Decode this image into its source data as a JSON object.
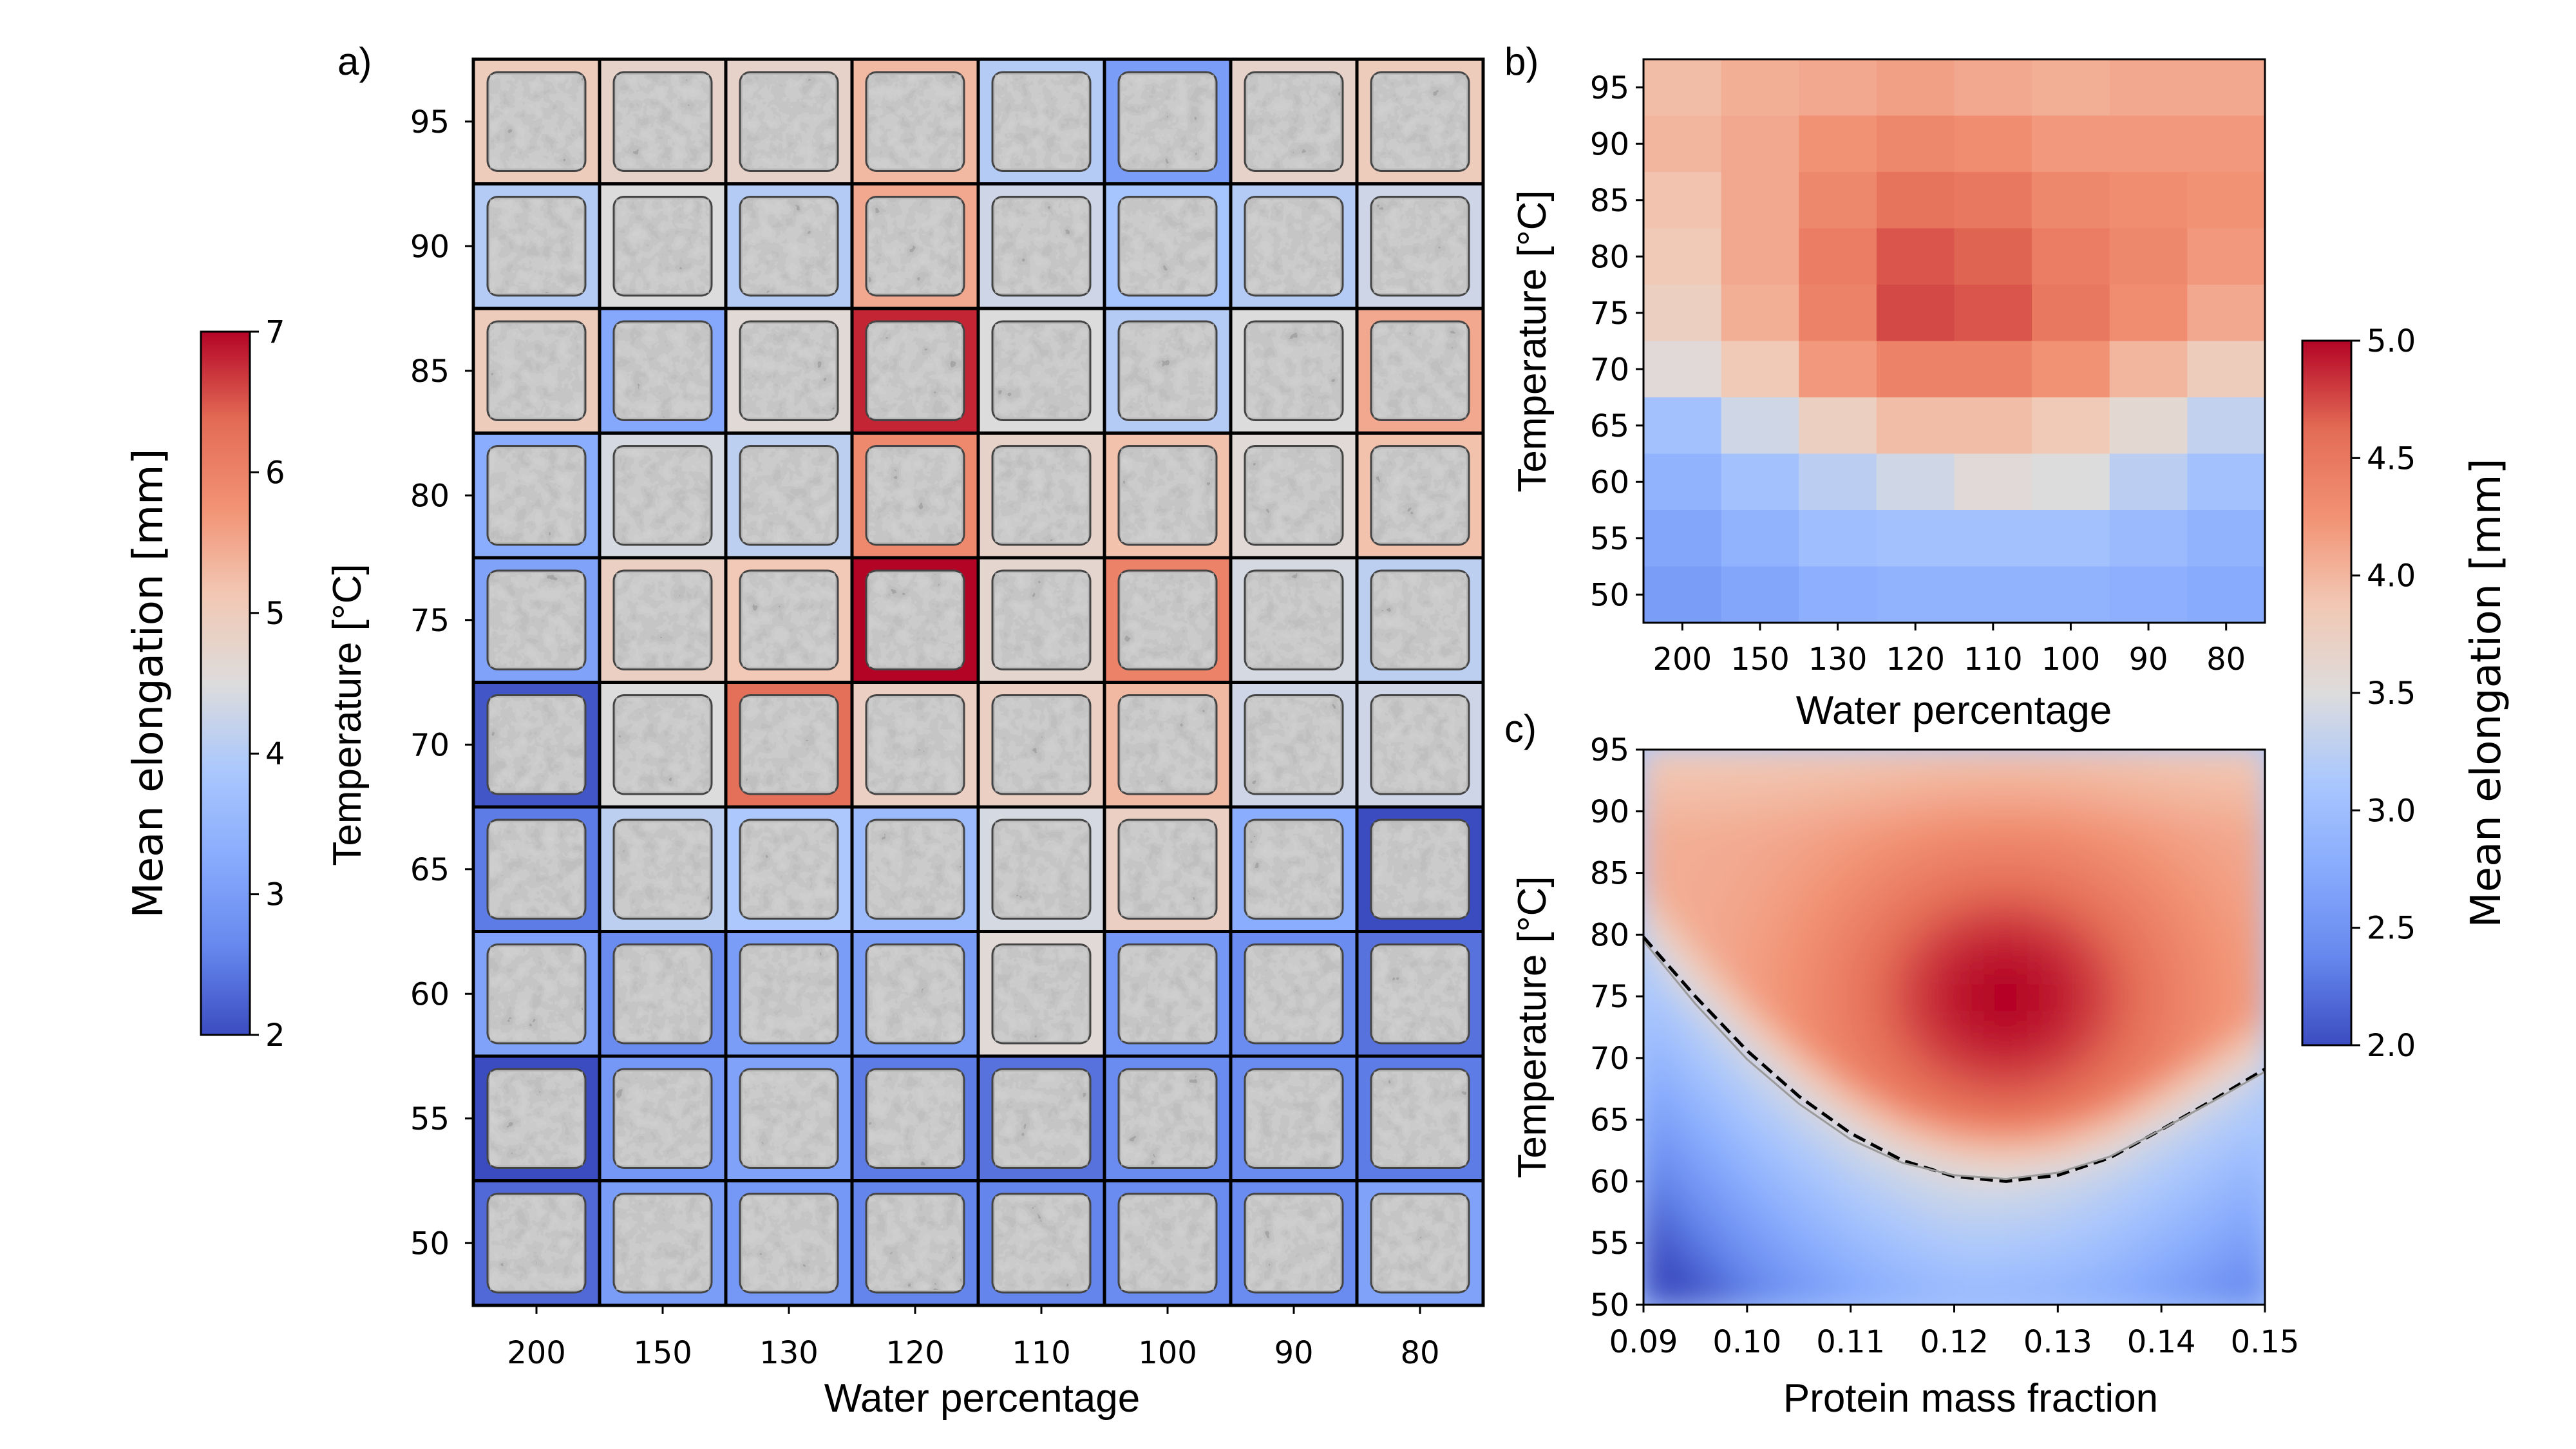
{
  "chart_data": [
    {
      "panel": "a)",
      "type": "heatmap",
      "title": "a)",
      "xlabel": "Water percentage",
      "ylabel": "Temperature [°C]",
      "x_categories": [
        "200",
        "150",
        "130",
        "120",
        "110",
        "100",
        "90",
        "80"
      ],
      "y_categories": [
        "95",
        "90",
        "85",
        "80",
        "75",
        "70",
        "65",
        "60",
        "55",
        "50"
      ],
      "cell_content": "sample photograph bordered by the mean-elongation colour",
      "values": [
        [
          5.0,
          4.8,
          4.8,
          5.3,
          4.0,
          3.0,
          4.8,
          5.0
        ],
        [
          4.0,
          4.5,
          4.0,
          5.5,
          4.3,
          3.8,
          4.0,
          4.3
        ],
        [
          5.0,
          3.2,
          4.6,
          6.8,
          4.5,
          4.0,
          4.5,
          5.5
        ],
        [
          3.3,
          4.4,
          4.1,
          5.9,
          4.8,
          5.2,
          4.6,
          5.2
        ],
        [
          3.1,
          4.9,
          5.1,
          7.0,
          4.7,
          6.0,
          4.4,
          4.1
        ],
        [
          2.1,
          4.5,
          6.3,
          4.9,
          4.9,
          5.3,
          4.3,
          4.3
        ],
        [
          2.5,
          4.1,
          3.9,
          3.6,
          4.4,
          4.9,
          3.3,
          2.0
        ],
        [
          3.1,
          2.7,
          3.0,
          3.0,
          4.6,
          2.9,
          2.7,
          2.4
        ],
        [
          2.0,
          2.9,
          3.1,
          2.5,
          2.4,
          2.7,
          2.7,
          2.5
        ],
        [
          2.3,
          3.0,
          2.9,
          2.6,
          2.6,
          2.7,
          2.7,
          3.1
        ]
      ],
      "colorbar": {
        "label": "Mean elongation [mm]",
        "min": 2,
        "max": 7,
        "ticks": [
          "2",
          "3",
          "4",
          "5",
          "6",
          "7"
        ]
      }
    },
    {
      "panel": "b)",
      "type": "heatmap",
      "title": "b)",
      "xlabel": "Water percentage",
      "ylabel": "Temperature [°C]",
      "x_categories": [
        "200",
        "150",
        "130",
        "120",
        "110",
        "100",
        "90",
        "80"
      ],
      "y_categories": [
        "95",
        "90",
        "85",
        "80",
        "75",
        "70",
        "65",
        "60",
        "55",
        "50"
      ],
      "values": [
        [
          3.95,
          4.05,
          4.1,
          4.15,
          4.1,
          4.05,
          4.1,
          4.1
        ],
        [
          4.0,
          4.1,
          4.25,
          4.35,
          4.3,
          4.2,
          4.2,
          4.2
        ],
        [
          3.9,
          4.1,
          4.35,
          4.55,
          4.5,
          4.35,
          4.3,
          4.25
        ],
        [
          3.85,
          4.1,
          4.45,
          4.7,
          4.65,
          4.45,
          4.35,
          4.2
        ],
        [
          3.75,
          4.05,
          4.4,
          4.75,
          4.7,
          4.5,
          4.3,
          4.1
        ],
        [
          3.55,
          3.85,
          4.2,
          4.4,
          4.4,
          4.25,
          4.0,
          3.8
        ],
        [
          3.05,
          3.4,
          3.75,
          3.95,
          3.95,
          3.85,
          3.6,
          3.3
        ],
        [
          2.85,
          3.05,
          3.25,
          3.4,
          3.55,
          3.5,
          3.25,
          3.05
        ],
        [
          2.7,
          2.85,
          3.0,
          3.05,
          3.05,
          3.05,
          2.95,
          2.85
        ],
        [
          2.6,
          2.7,
          2.8,
          2.85,
          2.85,
          2.85,
          2.8,
          2.75
        ]
      ]
    },
    {
      "panel": "c)",
      "type": "heatmap",
      "title": "c)",
      "xlabel": "Protein mass fraction",
      "ylabel": "Temperature [°C]",
      "xlim": [
        0.09,
        0.15
      ],
      "ylim": [
        50,
        95
      ],
      "x_ticks": [
        "0.09",
        "0.10",
        "0.11",
        "0.12",
        "0.13",
        "0.14",
        "0.15"
      ],
      "y_ticks": [
        "50",
        "55",
        "60",
        "65",
        "70",
        "75",
        "80",
        "85",
        "90",
        "95"
      ],
      "smooth_field": {
        "peak": {
          "x": 0.125,
          "y": 75,
          "value": 5.0
        },
        "threshold_value": 3.5
      },
      "boundary_curves": [
        {
          "name": "dashed black",
          "x": [
            0.09,
            0.095,
            0.1,
            0.105,
            0.11,
            0.115,
            0.12,
            0.125,
            0.13,
            0.135,
            0.14,
            0.145,
            0.15
          ],
          "y": [
            79.8,
            75.0,
            70.6,
            66.9,
            63.9,
            61.7,
            60.4,
            60.0,
            60.5,
            61.9,
            64.2,
            66.6,
            69.1
          ]
        },
        {
          "name": "thin grey",
          "x": [
            0.09,
            0.095,
            0.1,
            0.105,
            0.11,
            0.115,
            0.12,
            0.125,
            0.13,
            0.135,
            0.14,
            0.145,
            0.15
          ],
          "y": [
            79.5,
            74.4,
            69.9,
            66.3,
            63.4,
            61.5,
            60.5,
            60.2,
            60.7,
            62.0,
            64.2,
            66.5,
            68.9
          ]
        }
      ],
      "colorbar": {
        "label": "Mean elongation [mm]",
        "min": 2.0,
        "max": 5.0,
        "ticks": [
          "2.0",
          "2.5",
          "3.0",
          "3.5",
          "4.0",
          "4.5",
          "5.0"
        ]
      }
    }
  ]
}
